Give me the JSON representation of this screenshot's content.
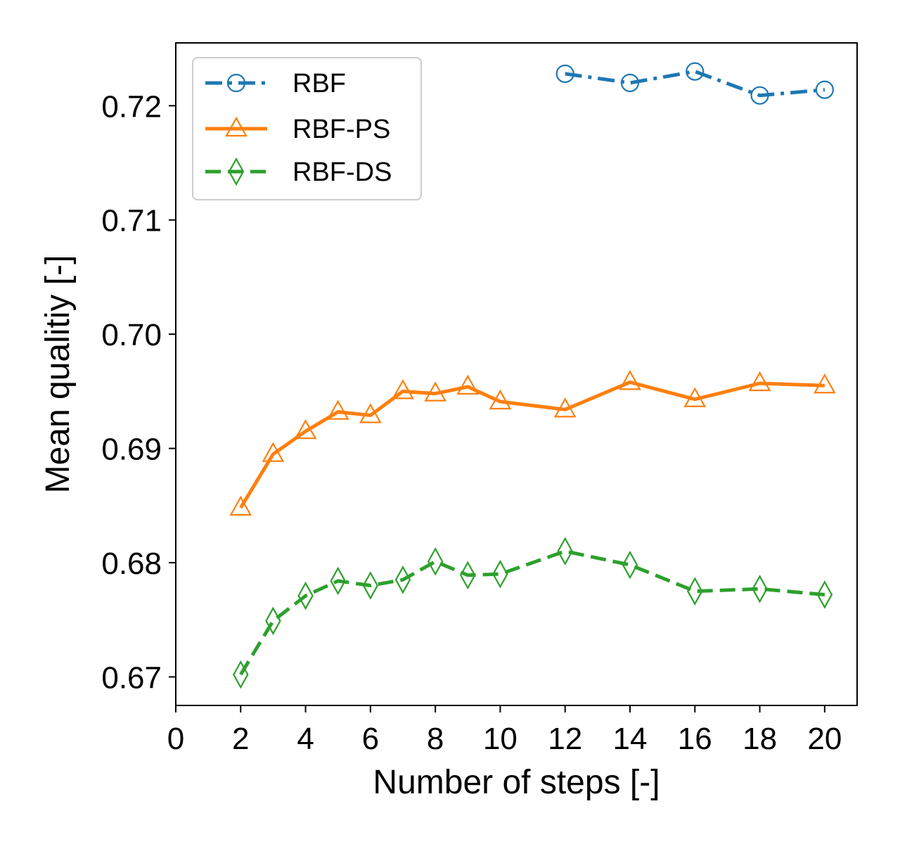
{
  "chart_data": {
    "type": "line",
    "xlabel": "Number of steps [-]",
    "ylabel": "Mean qualitiy [-]",
    "xlim": [
      0,
      21
    ],
    "ylim": [
      0.6675,
      0.7255
    ],
    "xticks": [
      0,
      2,
      4,
      6,
      8,
      10,
      12,
      14,
      16,
      18,
      20
    ],
    "xtick_labels": [
      "0",
      "2",
      "4",
      "6",
      "8",
      "10",
      "12",
      "14",
      "16",
      "18",
      "20"
    ],
    "yticks": [
      0.67,
      0.68,
      0.69,
      0.7,
      0.71,
      0.72
    ],
    "ytick_labels": [
      "0.67",
      "0.68",
      "0.69",
      "0.70",
      "0.71",
      "0.72"
    ],
    "grid": false,
    "legend_position": "upper-left",
    "series": [
      {
        "name": "RBF",
        "color": "#1f77b4",
        "line_style": "dash-dot",
        "marker": "circle",
        "x": [
          12,
          14,
          16,
          18,
          20
        ],
        "y": [
          0.7228,
          0.722,
          0.723,
          0.7209,
          0.7214
        ]
      },
      {
        "name": "RBF-PS",
        "color": "#ff7f0e",
        "line_style": "solid",
        "marker": "triangle",
        "x": [
          2,
          3,
          4,
          5,
          6,
          7,
          8,
          9,
          10,
          12,
          14,
          16,
          18,
          20
        ],
        "y": [
          0.6848,
          0.6895,
          0.6915,
          0.6932,
          0.6929,
          0.695,
          0.6948,
          0.6954,
          0.6941,
          0.6934,
          0.6958,
          0.6943,
          0.6957,
          0.6955
        ]
      },
      {
        "name": "RBF-DS",
        "color": "#2ca02c",
        "line_style": "dashed",
        "marker": "diamond",
        "x": [
          2,
          3,
          4,
          5,
          6,
          7,
          8,
          9,
          10,
          12,
          14,
          16,
          18,
          20
        ],
        "y": [
          0.6702,
          0.6749,
          0.6771,
          0.6784,
          0.678,
          0.6785,
          0.6801,
          0.6789,
          0.679,
          0.681,
          0.6798,
          0.6775,
          0.6777,
          0.6772
        ]
      }
    ]
  }
}
